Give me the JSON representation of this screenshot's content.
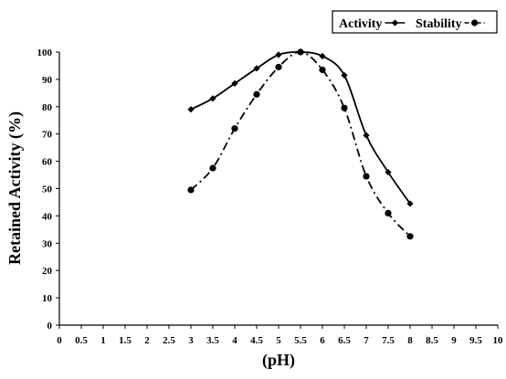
{
  "chart_data": {
    "type": "line",
    "xlabel": "(pH)",
    "ylabel": "Retained Activity (%)",
    "xlim": [
      0,
      10
    ],
    "ylim": [
      0,
      100
    ],
    "x_ticks": [
      "0",
      "0.5",
      "1",
      "1.5",
      "2",
      "2.5",
      "3",
      "3.5",
      "4",
      "4.5",
      "5",
      "5.5",
      "6",
      "6.5",
      "7",
      "7.5",
      "8",
      "8.5",
      "9",
      "9.5",
      "10"
    ],
    "y_ticks": [
      "0",
      "10",
      "20",
      "30",
      "40",
      "50",
      "60",
      "70",
      "80",
      "90",
      "100"
    ],
    "grid": false,
    "legend_position": "top-right",
    "series": [
      {
        "name": "Activity",
        "marker": "diamond",
        "line_style": "solid",
        "x": [
          3,
          3.5,
          4,
          4.5,
          5,
          5.5,
          6,
          6.5,
          7,
          7.5,
          8
        ],
        "y": [
          79,
          83,
          88.5,
          94,
          99,
          100,
          98.5,
          91.5,
          69.5,
          56,
          44.5
        ]
      },
      {
        "name": "Stability",
        "marker": "circle",
        "line_style": "dash-dot",
        "x": [
          3,
          3.5,
          4,
          4.5,
          5,
          5.5,
          6,
          6.5,
          7,
          7.5,
          8
        ],
        "y": [
          49.5,
          57.5,
          72,
          84.5,
          94.5,
          100,
          93.5,
          79.5,
          54.5,
          41,
          32.5
        ]
      }
    ]
  }
}
